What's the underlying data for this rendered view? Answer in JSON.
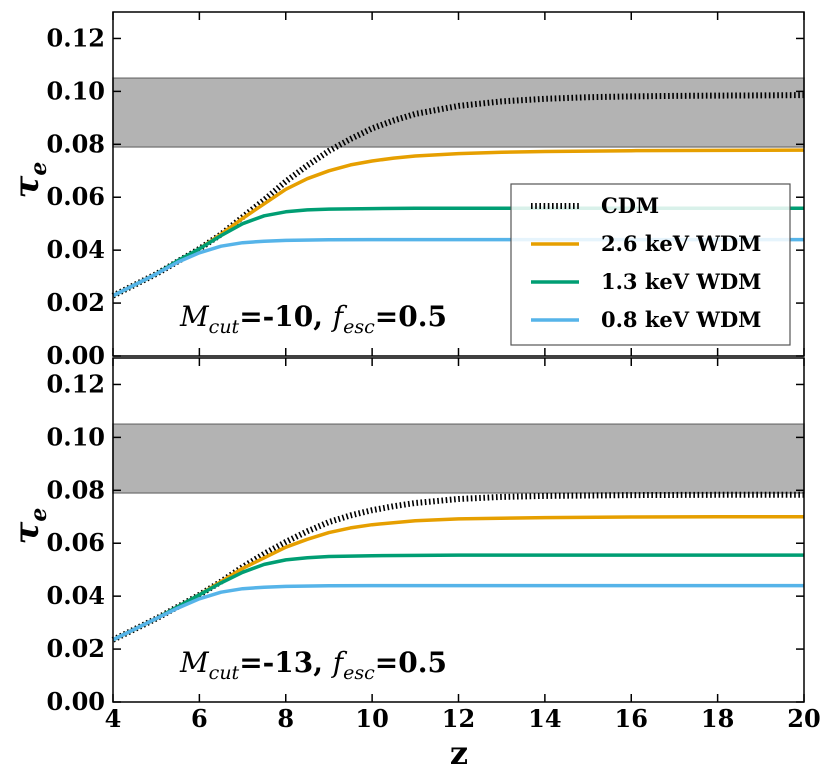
{
  "chart_data": [
    {
      "type": "line",
      "panel": "top",
      "xlim": [
        4,
        20
      ],
      "ylim": [
        0.0,
        0.13
      ],
      "x_ticks": [
        "4",
        "6",
        "8",
        "10",
        "12",
        "14",
        "16",
        "18",
        "20"
      ],
      "y_ticks": [
        "0.00",
        "0.02",
        "0.04",
        "0.06",
        "0.08",
        "0.10",
        "0.12"
      ],
      "ylabel": "τ",
      "ylabel_sub": "e",
      "xlabel": "",
      "band": {
        "y0": 0.079,
        "y1": 0.105,
        "color": "#b3b3b3"
      },
      "annotation": {
        "m": "M",
        "m_sub": "cut",
        "m_val": "=-10, ",
        "f": "f",
        "f_sub": "esc",
        "f_val": "=0.5"
      },
      "legend": {
        "position": "center-right",
        "entries": [
          "CDM",
          "2.6 keV WDM",
          "1.3 keV WDM",
          "0.8 keV WDM"
        ]
      },
      "series": [
        {
          "name": "CDM",
          "color": "#000000",
          "style": "dotted",
          "x": [
            4,
            5,
            6,
            6.5,
            7,
            7.5,
            8,
            8.5,
            9,
            9.5,
            10,
            10.5,
            11,
            12,
            13,
            14,
            15,
            16,
            17,
            18,
            19,
            20
          ],
          "y": [
            0.0228,
            0.031,
            0.0405,
            0.046,
            0.0525,
            0.059,
            0.066,
            0.072,
            0.0775,
            0.082,
            0.086,
            0.089,
            0.0915,
            0.0945,
            0.0962,
            0.0972,
            0.0978,
            0.0981,
            0.0983,
            0.0984,
            0.0985,
            0.0986
          ]
        },
        {
          "name": "2.6 keV WDM",
          "color": "#e69f00",
          "style": "solid",
          "x": [
            4,
            5,
            6,
            6.5,
            7,
            7.5,
            8,
            8.5,
            9,
            9.5,
            10,
            10.5,
            11,
            12,
            13,
            14,
            16,
            18,
            20
          ],
          "y": [
            0.0228,
            0.031,
            0.0405,
            0.046,
            0.052,
            0.0575,
            0.063,
            0.067,
            0.07,
            0.0722,
            0.0737,
            0.0748,
            0.0756,
            0.0765,
            0.077,
            0.0773,
            0.0776,
            0.0777,
            0.0778
          ]
        },
        {
          "name": "1.3 keV WDM",
          "color": "#009e73",
          "style": "solid",
          "x": [
            4,
            5,
            5.5,
            6,
            6.5,
            7,
            7.5,
            8,
            8.5,
            9,
            10,
            11,
            12,
            14,
            16,
            18,
            20
          ],
          "y": [
            0.0228,
            0.031,
            0.036,
            0.0405,
            0.0455,
            0.05,
            0.053,
            0.0545,
            0.0552,
            0.0555,
            0.0557,
            0.0558,
            0.0558,
            0.0558,
            0.0558,
            0.0558,
            0.0558
          ]
        },
        {
          "name": "0.8 keV WDM",
          "color": "#56b4e9",
          "style": "solid",
          "x": [
            4,
            5,
            5.5,
            6,
            6.5,
            7,
            7.5,
            8,
            9,
            10,
            12,
            14,
            16,
            18,
            20
          ],
          "y": [
            0.0228,
            0.031,
            0.0355,
            0.039,
            0.0415,
            0.0428,
            0.0434,
            0.0437,
            0.0439,
            0.044,
            0.044,
            0.044,
            0.044,
            0.044,
            0.044
          ]
        }
      ]
    },
    {
      "type": "line",
      "panel": "bottom",
      "xlim": [
        4,
        20
      ],
      "ylim": [
        0.0,
        0.13
      ],
      "x_ticks": [
        "4",
        "6",
        "8",
        "10",
        "12",
        "14",
        "16",
        "18",
        "20"
      ],
      "y_ticks": [
        "0.00",
        "0.02",
        "0.04",
        "0.06",
        "0.08",
        "0.10",
        "0.12"
      ],
      "ylabel": "τ",
      "ylabel_sub": "e",
      "xlabel": "z",
      "band": {
        "y0": 0.079,
        "y1": 0.105,
        "color": "#b3b3b3"
      },
      "annotation": {
        "m": "M",
        "m_sub": "cut",
        "m_val": "=-13, ",
        "f": "f",
        "f_sub": "esc",
        "f_val": "=0.5"
      },
      "series": [
        {
          "name": "CDM",
          "color": "#000000",
          "style": "dotted",
          "x": [
            4,
            5,
            6,
            6.5,
            7,
            7.5,
            8,
            8.5,
            9,
            9.5,
            10,
            10.5,
            11,
            12,
            13,
            14,
            16,
            18,
            20
          ],
          "y": [
            0.0235,
            0.0315,
            0.0405,
            0.0455,
            0.051,
            0.056,
            0.0605,
            0.0645,
            0.068,
            0.0705,
            0.0725,
            0.074,
            0.0752,
            0.0767,
            0.0775,
            0.0779,
            0.0782,
            0.0783,
            0.0783
          ]
        },
        {
          "name": "2.6 keV WDM",
          "color": "#e69f00",
          "style": "solid",
          "x": [
            4,
            5,
            6,
            6.5,
            7,
            7.5,
            8,
            8.5,
            9,
            9.5,
            10,
            11,
            12,
            14,
            16,
            18,
            20
          ],
          "y": [
            0.0235,
            0.0315,
            0.0405,
            0.0455,
            0.0505,
            0.0545,
            0.0585,
            0.0615,
            0.064,
            0.0658,
            0.067,
            0.0685,
            0.0692,
            0.0697,
            0.0699,
            0.07,
            0.07
          ]
        },
        {
          "name": "1.3 keV WDM",
          "color": "#009e73",
          "style": "solid",
          "x": [
            4,
            5,
            5.5,
            6,
            6.5,
            7,
            7.5,
            8,
            8.5,
            9,
            10,
            12,
            14,
            16,
            18,
            20
          ],
          "y": [
            0.0235,
            0.0315,
            0.036,
            0.0405,
            0.045,
            0.049,
            0.052,
            0.0537,
            0.0545,
            0.055,
            0.0553,
            0.0555,
            0.0555,
            0.0555,
            0.0555,
            0.0555
          ]
        },
        {
          "name": "0.8 keV WDM",
          "color": "#56b4e9",
          "style": "solid",
          "x": [
            4,
            5,
            5.5,
            6,
            6.5,
            7,
            7.5,
            8,
            9,
            10,
            12,
            14,
            16,
            18,
            20
          ],
          "y": [
            0.0235,
            0.0315,
            0.0355,
            0.039,
            0.0415,
            0.0428,
            0.0434,
            0.0437,
            0.0439,
            0.044,
            0.044,
            0.044,
            0.044,
            0.044,
            0.044
          ]
        }
      ]
    }
  ]
}
